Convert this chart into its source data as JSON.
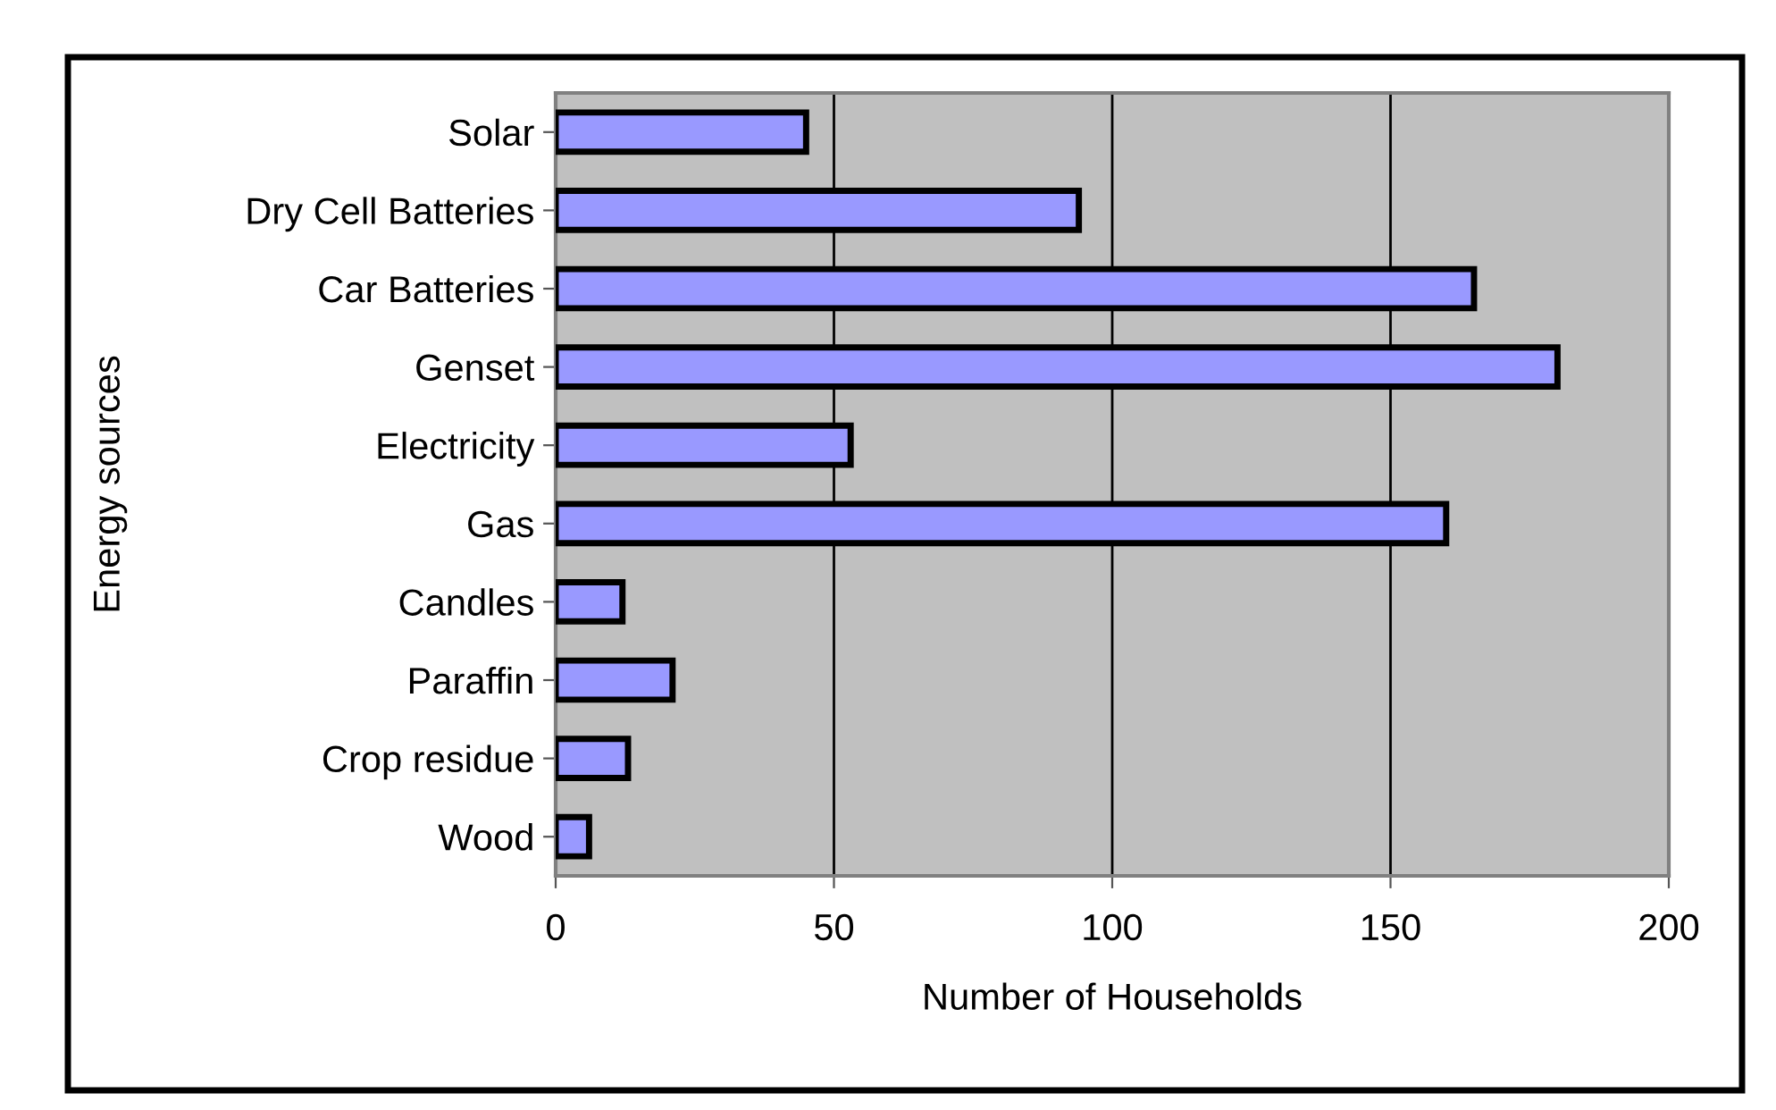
{
  "chart_data": {
    "type": "bar",
    "orientation": "horizontal",
    "categories": [
      "Solar",
      "Dry Cell Batteries",
      "Car Batteries",
      "Genset",
      "Electricity",
      "Gas",
      "Candles",
      "Paraffin",
      "Crop residue",
      "Wood"
    ],
    "values": [
      45,
      94,
      165,
      180,
      53,
      160,
      12,
      21,
      13,
      6
    ],
    "color": "#9999ff",
    "xlabel": "Number of Households",
    "ylabel": "Energy sources",
    "xlim": [
      0,
      200
    ],
    "xticks": [
      0,
      50,
      100,
      150,
      200
    ],
    "grid": "x",
    "legend": false
  }
}
